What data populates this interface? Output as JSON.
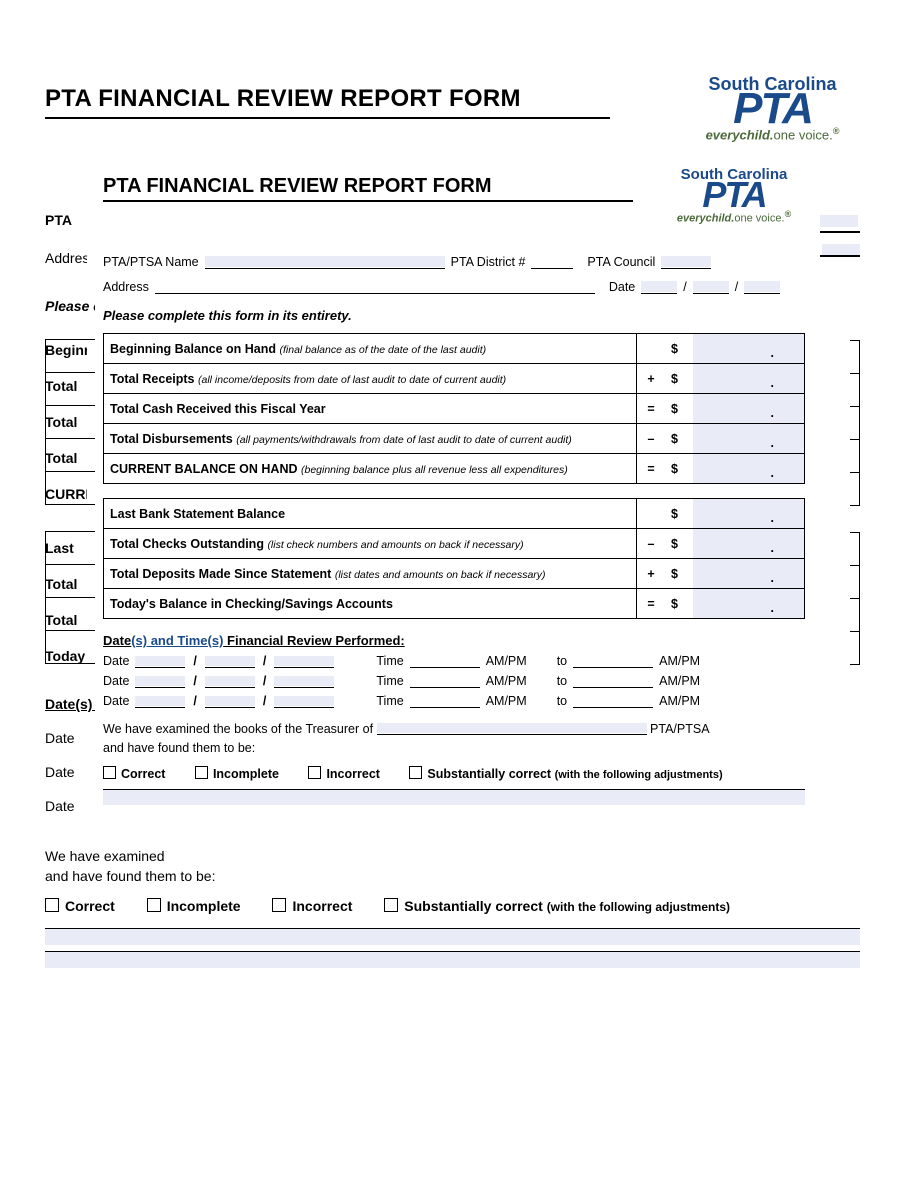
{
  "colors": {
    "fill": "#e9ecf6",
    "brand_blue": "#1a4a8a",
    "brand_green": "#4a6a3a",
    "text": "#000000",
    "bg": "#ffffff"
  },
  "logo": {
    "line1": "South Carolina",
    "line2": "PTA",
    "tag_italic": "everychild.",
    "tag_rest": "one voice.",
    "reg": "®"
  },
  "title": "PTA FINANCIAL REVIEW REPORT FORM",
  "back": {
    "labels": {
      "pta": "PTA",
      "addr": "Address",
      "instr": "Please complete this form in its entirety.",
      "beg": "Beginning",
      "tot": "Total",
      "cur": "CURRENT",
      "las": "Last",
      "tod": "Today",
      "dat_u": "Date(s) and",
      "dat": "Date",
      "we": "We have examined",
      "found": "and have found them to be:"
    },
    "checks": {
      "c1": "Correct",
      "c2": "Incomplete",
      "c3": "Incorrect",
      "c4": "Substantially correct",
      "fine": "(with the following adjustments)"
    }
  },
  "front": {
    "meta": {
      "name_lbl": "PTA/PTSA Name",
      "district_lbl": "PTA District #",
      "council_lbl": "PTA Council",
      "addr_lbl": "Address",
      "date_lbl": "Date"
    },
    "instr": "Please complete this form in its entirety.",
    "table1": [
      {
        "label": "Beginning Balance on Hand",
        "hint": "(final balance as of the date of the last audit)",
        "op": ""
      },
      {
        "label": "Total Receipts",
        "hint": "(all income/deposits from date of last audit to date of current audit)",
        "op": "+"
      },
      {
        "label": "Total Cash Received this Fiscal Year",
        "hint": "",
        "op": "="
      },
      {
        "label": "Total Disbursements",
        "hint": "(all payments/withdrawals from date of last audit to date of current audit)",
        "op": "–"
      },
      {
        "label": "CURRENT BALANCE ON HAND",
        "hint": "(beginning balance plus all revenue less all expenditures)",
        "op": "="
      }
    ],
    "table2": [
      {
        "label": "Last Bank Statement Balance",
        "hint": "",
        "op": ""
      },
      {
        "label": "Total Checks Outstanding",
        "hint": "(list check numbers and amounts on back if necessary)",
        "op": "–"
      },
      {
        "label": "Total Deposits Made Since Statement",
        "hint": "(list dates and amounts on back if necessary)",
        "op": "+"
      },
      {
        "label": "Today's Balance in Checking/Savings Accounts",
        "hint": "",
        "op": "="
      }
    ],
    "currency": "$",
    "section_label": {
      "pre": "Date",
      "s": "(s)",
      "mid": " and Time",
      "post": " Financial Review Performed:"
    },
    "dt": {
      "date": "Date",
      "time": "Time",
      "ampm": "AM/PM",
      "to": "to"
    },
    "exam": {
      "l1a": "We have examined the books of the Treasurer of ",
      "l1b": " PTA/PTSA",
      "l2": "and have found them to be:"
    },
    "checks": {
      "c1": "Correct",
      "c2": "Incomplete",
      "c3": "Incorrect",
      "c4": "Substantially correct",
      "fine": "(with the following adjustments)"
    }
  }
}
